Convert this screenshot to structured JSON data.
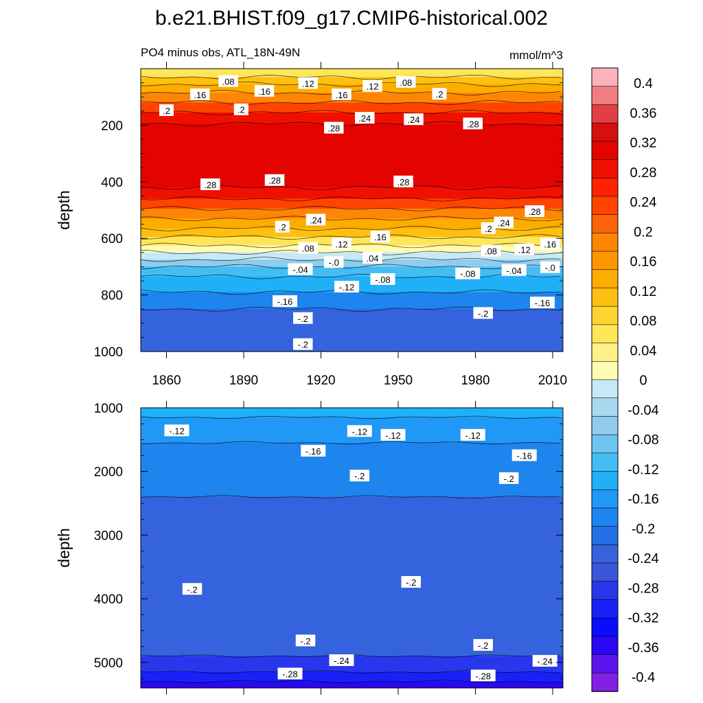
{
  "chart_data": {
    "type": "contour",
    "title": "b.e21.BHIST.f09_g17.CMIP6-historical.002",
    "subtitle_left": "PO4 minus obs, ATL_18N-49N",
    "subtitle_right": "mmol/m^3",
    "colorbar": {
      "levels": [
        -0.4,
        -0.36,
        -0.32,
        -0.28,
        -0.24,
        -0.2,
        -0.16,
        -0.12,
        -0.08,
        -0.04,
        0,
        0.04,
        0.08,
        0.12,
        0.16,
        0.2,
        0.24,
        0.28,
        0.32,
        0.36,
        0.4
      ],
      "labels": [
        "0.4",
        "0.36",
        "0.32",
        "0.28",
        "0.24",
        "0.2",
        "0.16",
        "0.12",
        "0.08",
        "0.04",
        "0",
        "-0.04",
        "-0.08",
        "-0.12",
        "-0.16",
        "-0.2",
        "-0.24",
        "-0.28",
        "-0.32",
        "-0.36",
        "-0.4"
      ],
      "colors_top_to_bottom": [
        "#f9b3b9",
        "#f07d80",
        "#e33f43",
        "#d6100f",
        "#e30400",
        "#f01000",
        "#fe2200",
        "#fe4400",
        "#fd6409",
        "#fe8505",
        "#fe9600",
        "#fdac00",
        "#fdc010",
        "#fed52f",
        "#ffe659",
        "#fff088",
        "#fefbb2",
        "#c7e8f6",
        "#a8d9f0",
        "#8fcdee",
        "#6cc4ef",
        "#44bdf4",
        "#20b0f8",
        "#2098f6",
        "#1e84ee",
        "#246fe5",
        "#3463dd",
        "#3c56d9",
        "#2837ec",
        "#1821f8",
        "#0b0cf9",
        "#2a08f3",
        "#5b14ec",
        "#8220e6"
      ]
    },
    "x_ticks": [
      "1860",
      "1890",
      "1920",
      "1950",
      "1980",
      "2010"
    ],
    "x_tick_years": [
      1860,
      1890,
      1920,
      1950,
      1980,
      2010
    ],
    "x_range": [
      1850,
      2014
    ],
    "panels": [
      {
        "name": "upper",
        "ylabel": "depth",
        "ylim": [
          0,
          1000
        ],
        "y_ticks": [
          "200",
          "400",
          "600",
          "800",
          "1000"
        ],
        "y_tick_values": [
          200,
          400,
          600,
          800,
          1000
        ],
        "bands": [
          {
            "from": 0,
            "to": 30,
            "value": 0.06
          },
          {
            "from": 30,
            "to": 55,
            "value": 0.1
          },
          {
            "from": 55,
            "to": 85,
            "value": 0.14
          },
          {
            "from": 85,
            "to": 120,
            "value": 0.18
          },
          {
            "from": 120,
            "to": 155,
            "value": 0.22
          },
          {
            "from": 155,
            "to": 195,
            "value": 0.26
          },
          {
            "from": 195,
            "to": 420,
            "value": 0.3
          },
          {
            "from": 420,
            "to": 460,
            "value": 0.26
          },
          {
            "from": 460,
            "to": 495,
            "value": 0.22
          },
          {
            "from": 495,
            "to": 530,
            "value": 0.18
          },
          {
            "from": 530,
            "to": 565,
            "value": 0.14
          },
          {
            "from": 565,
            "to": 595,
            "value": 0.1
          },
          {
            "from": 595,
            "to": 625,
            "value": 0.06
          },
          {
            "from": 625,
            "to": 650,
            "value": 0.02
          },
          {
            "from": 650,
            "to": 675,
            "value": -0.02
          },
          {
            "from": 675,
            "to": 700,
            "value": -0.06
          },
          {
            "from": 700,
            "to": 735,
            "value": -0.1
          },
          {
            "from": 735,
            "to": 790,
            "value": -0.14
          },
          {
            "from": 790,
            "to": 850,
            "value": -0.18
          },
          {
            "from": 850,
            "to": 1000,
            "value": -0.22
          }
        ],
        "contour_labels": [
          {
            "text": ".08",
            "year": 1884,
            "depth": 45
          },
          {
            "text": ".12",
            "year": 1915,
            "depth": 52
          },
          {
            "text": ".12",
            "year": 1940,
            "depth": 62
          },
          {
            "text": ".08",
            "year": 1953,
            "depth": 48
          },
          {
            "text": ".16",
            "year": 1873,
            "depth": 92
          },
          {
            "text": ".16",
            "year": 1898,
            "depth": 80
          },
          {
            "text": ".16",
            "year": 1928,
            "depth": 92
          },
          {
            "text": ".2",
            "year": 1860,
            "depth": 148
          },
          {
            "text": ".2",
            "year": 1889,
            "depth": 145
          },
          {
            "text": ".2",
            "year": 1966,
            "depth": 90
          },
          {
            "text": ".24",
            "year": 1937,
            "depth": 175
          },
          {
            "text": ".24",
            "year": 1956,
            "depth": 180
          },
          {
            "text": ".28",
            "year": 1925,
            "depth": 210
          },
          {
            "text": ".28",
            "year": 1979,
            "depth": 195
          },
          {
            "text": ".28",
            "year": 1877,
            "depth": 410
          },
          {
            "text": ".28",
            "year": 1902,
            "depth": 395
          },
          {
            "text": ".28",
            "year": 1952,
            "depth": 400
          },
          {
            "text": ".28",
            "year": 2003,
            "depth": 505
          },
          {
            "text": ".2",
            "year": 1905,
            "depth": 560
          },
          {
            "text": ".24",
            "year": 1918,
            "depth": 535
          },
          {
            "text": ".2",
            "year": 1985,
            "depth": 565
          },
          {
            "text": ".24",
            "year": 1991,
            "depth": 545
          },
          {
            "text": ".08",
            "year": 1915,
            "depth": 635
          },
          {
            "text": ".12",
            "year": 1928,
            "depth": 620
          },
          {
            "text": ".16",
            "year": 1943,
            "depth": 595
          },
          {
            "text": ".08",
            "year": 1986,
            "depth": 645
          },
          {
            "text": ".12",
            "year": 1999,
            "depth": 640
          },
          {
            "text": ".16",
            "year": 2009,
            "depth": 620
          },
          {
            "text": "-.0",
            "year": 1925,
            "depth": 685
          },
          {
            "text": ".04",
            "year": 1940,
            "depth": 670
          },
          {
            "text": "-.04",
            "year": 1912,
            "depth": 710
          },
          {
            "text": "-.08",
            "year": 1944,
            "depth": 745
          },
          {
            "text": "-.08",
            "year": 1977,
            "depth": 725
          },
          {
            "text": "-.04",
            "year": 1995,
            "depth": 713
          },
          {
            "text": "-.0",
            "year": 2009,
            "depth": 703
          },
          {
            "text": "-.12",
            "year": 1930,
            "depth": 772
          },
          {
            "text": "-.16",
            "year": 1906,
            "depth": 823
          },
          {
            "text": "-.16",
            "year": 2006,
            "depth": 828
          },
          {
            "text": "-.2",
            "year": 1913,
            "depth": 883
          },
          {
            "text": "-.2",
            "year": 1983,
            "depth": 865
          },
          {
            "text": "-.2",
            "year": 1913,
            "depth": 975
          }
        ]
      },
      {
        "name": "lower",
        "ylabel": "depth",
        "ylim": [
          1000,
          5400
        ],
        "y_ticks": [
          "1000",
          "2000",
          "3000",
          "4000",
          "5000"
        ],
        "y_tick_values": [
          1000,
          2000,
          3000,
          4000,
          5000
        ],
        "bands": [
          {
            "from": 1000,
            "to": 1150,
            "value": -0.14
          },
          {
            "from": 1150,
            "to": 1550,
            "value": -0.15
          },
          {
            "from": 1550,
            "to": 2400,
            "value": -0.18
          },
          {
            "from": 2400,
            "to": 4900,
            "value": -0.22
          },
          {
            "from": 4900,
            "to": 5150,
            "value": -0.26
          },
          {
            "from": 5150,
            "to": 5300,
            "value": -0.3
          },
          {
            "from": 5300,
            "to": 5400,
            "value": -0.34
          }
        ],
        "contour_labels": [
          {
            "text": "-.12",
            "year": 1864,
            "depth": 1360
          },
          {
            "text": "-.12",
            "year": 1935,
            "depth": 1370
          },
          {
            "text": "-.12",
            "year": 1948,
            "depth": 1430
          },
          {
            "text": "-.12",
            "year": 1979,
            "depth": 1430
          },
          {
            "text": "-.16",
            "year": 1917,
            "depth": 1680
          },
          {
            "text": "-.16",
            "year": 1999,
            "depth": 1750
          },
          {
            "text": "-.2",
            "year": 1935,
            "depth": 2070
          },
          {
            "text": "-.2",
            "year": 1993,
            "depth": 2110
          },
          {
            "text": "-.2",
            "year": 1870,
            "depth": 3850
          },
          {
            "text": "-.2",
            "year": 1955,
            "depth": 3740
          },
          {
            "text": "-.2",
            "year": 1914,
            "depth": 4660
          },
          {
            "text": "-.2",
            "year": 1983,
            "depth": 4730
          },
          {
            "text": "-.24",
            "year": 1928,
            "depth": 4970
          },
          {
            "text": "-.24",
            "year": 2007,
            "depth": 4980
          },
          {
            "text": "-.28",
            "year": 1908,
            "depth": 5180
          },
          {
            "text": "-.28",
            "year": 1983,
            "depth": 5210
          }
        ]
      }
    ]
  }
}
